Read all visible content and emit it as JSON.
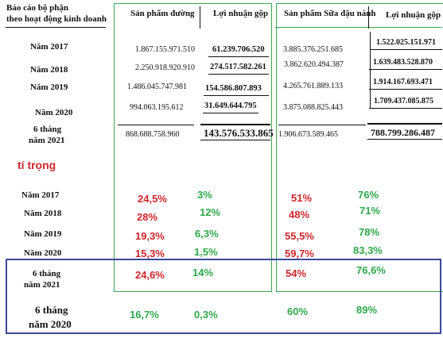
{
  "header": {
    "segment_label_line1": "Báo cáo bộ phận",
    "segment_label_line2": "theo hoạt động kinh doanh",
    "sugar_products": "Sản phẩm đường",
    "gross_profit_1": "Lợi nhuận gộp",
    "soy_products": "Sản phẩm Sữa đậu nành",
    "gross_profit_2": "Lợi nhuận gộp"
  },
  "table_rows": [
    {
      "year": "Năm 2017",
      "sugar": "1.867.155.971.510",
      "sugar_profit": "61.239.706.520",
      "soy": "3.885.376.251.685",
      "soy_profit": "1.522.025.151.971"
    },
    {
      "year": "Năm 2018",
      "sugar": "2.250.918.920.910",
      "sugar_profit": "274.517.582.261",
      "soy": "3.862.620.494.387",
      "soy_profit": "1.639.483.528.870"
    },
    {
      "year": "Năm 2019",
      "sugar": "1.486.045.747.981",
      "sugar_profit": "154.586.807.893",
      "soy": "4.265.761.889.133",
      "soy_profit": "1.914.167.693.471"
    },
    {
      "year": "Năm 2020",
      "sugar": "994.063.195.612",
      "sugar_profit": "31.649.644.795",
      "soy": "3.875.088.825.443",
      "soy_profit": "1.709.437.085.875"
    },
    {
      "year_line1": "6 tháng",
      "year_line2": "năm 2021",
      "sugar": "868.688.758.960",
      "sugar_profit": "143.576.533.865",
      "soy": "1.906.673.589.465",
      "soy_profit": "788.799.286.487"
    }
  ],
  "weight_label": "tí trọng",
  "weight_rows": [
    {
      "year": "Năm 2017",
      "sugar_pct": "24,5%",
      "sugar_profit_pct": "3%",
      "soy_pct": "51%",
      "soy_profit_pct": "76%"
    },
    {
      "year": "Năm 2018",
      "sugar_pct": "28%",
      "sugar_profit_pct": "12%",
      "soy_pct": "48%",
      "soy_profit_pct": "71%"
    },
    {
      "year": "Năm 2019",
      "sugar_pct": "19,3%",
      "sugar_profit_pct": "6,3%",
      "soy_pct": "55,5%",
      "soy_profit_pct": "78%"
    },
    {
      "year": "Năm 2020",
      "sugar_pct": "15,3%",
      "sugar_profit_pct": "1,5%",
      "soy_pct": "59,7%",
      "soy_profit_pct": "83,3%"
    },
    {
      "year_line1": "6 tháng",
      "year_line2": "năm 2021",
      "sugar_pct": "24,6%",
      "sugar_profit_pct": "14%",
      "soy_pct": "54%",
      "soy_profit_pct": "76,6%"
    },
    {
      "year_line1": "6 tháng",
      "year_line2": "năm 2020",
      "sugar_pct": "16,7%",
      "sugar_profit_pct": "0,3%",
      "soy_pct": "60%",
      "soy_profit_pct": "89%"
    }
  ],
  "colors": {
    "red": "#d0262c",
    "green": "#2fa84b",
    "box_green": "#3aa655",
    "box_blue": "#3d4a9a"
  }
}
